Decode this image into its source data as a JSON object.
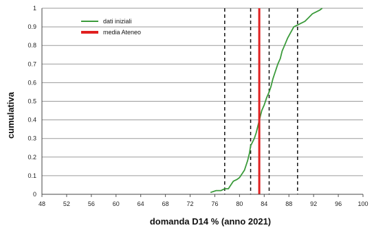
{
  "chart_data": {
    "type": "line",
    "xlabel": "domanda D14 % (anno 2021)",
    "ylabel": "cumulativa",
    "xlim": [
      48,
      100
    ],
    "ylim": [
      0,
      1
    ],
    "x_ticks": [
      "48",
      "52",
      "56",
      "60",
      "64",
      "68",
      "72",
      "76",
      "80",
      "84",
      "88",
      "92",
      "96",
      "100"
    ],
    "y_ticks": [
      "0",
      "0.1",
      "0.2",
      "0.3",
      "0.4",
      "0.5",
      "0.6",
      "0.7",
      "0.8",
      "0.9",
      "1"
    ],
    "grid": "horizontal",
    "legend_position": "top-left",
    "series": [
      {
        "name": "dati iniziali",
        "color": "#3a9a3a",
        "points": [
          [
            75.3,
            0.01
          ],
          [
            76.2,
            0.02
          ],
          [
            77.0,
            0.02
          ],
          [
            77.6,
            0.03
          ],
          [
            78.2,
            0.03
          ],
          [
            78.6,
            0.05
          ],
          [
            79.0,
            0.07
          ],
          [
            79.6,
            0.08
          ],
          [
            80.0,
            0.09
          ],
          [
            80.4,
            0.11
          ],
          [
            80.8,
            0.13
          ],
          [
            81.1,
            0.16
          ],
          [
            81.3,
            0.18
          ],
          [
            81.6,
            0.22
          ],
          [
            81.8,
            0.26
          ],
          [
            82.1,
            0.28
          ],
          [
            82.4,
            0.3
          ],
          [
            82.7,
            0.33
          ],
          [
            83.0,
            0.37
          ],
          [
            83.3,
            0.41
          ],
          [
            83.6,
            0.45
          ],
          [
            84.0,
            0.48
          ],
          [
            84.4,
            0.52
          ],
          [
            84.8,
            0.55
          ],
          [
            85.1,
            0.58
          ],
          [
            85.4,
            0.62
          ],
          [
            85.8,
            0.66
          ],
          [
            86.2,
            0.7
          ],
          [
            86.6,
            0.73
          ],
          [
            86.9,
            0.77
          ],
          [
            87.3,
            0.8
          ],
          [
            87.8,
            0.84
          ],
          [
            88.3,
            0.87
          ],
          [
            88.8,
            0.9
          ],
          [
            89.4,
            0.91
          ],
          [
            90.0,
            0.92
          ],
          [
            90.6,
            0.93
          ],
          [
            91.2,
            0.95
          ],
          [
            91.8,
            0.97
          ],
          [
            92.4,
            0.98
          ],
          [
            93.0,
            0.99
          ],
          [
            93.4,
            1.0
          ]
        ]
      },
      {
        "name": "media Ateneo",
        "color": "#e02020",
        "x": 83.2
      }
    ],
    "reference_lines": [
      {
        "x": 77.6,
        "style": "dashed",
        "color": "#111111"
      },
      {
        "x": 81.8,
        "style": "dashed",
        "color": "#111111"
      },
      {
        "x": 84.8,
        "style": "dashed",
        "color": "#111111"
      },
      {
        "x": 89.4,
        "style": "dashed",
        "color": "#111111"
      }
    ]
  }
}
